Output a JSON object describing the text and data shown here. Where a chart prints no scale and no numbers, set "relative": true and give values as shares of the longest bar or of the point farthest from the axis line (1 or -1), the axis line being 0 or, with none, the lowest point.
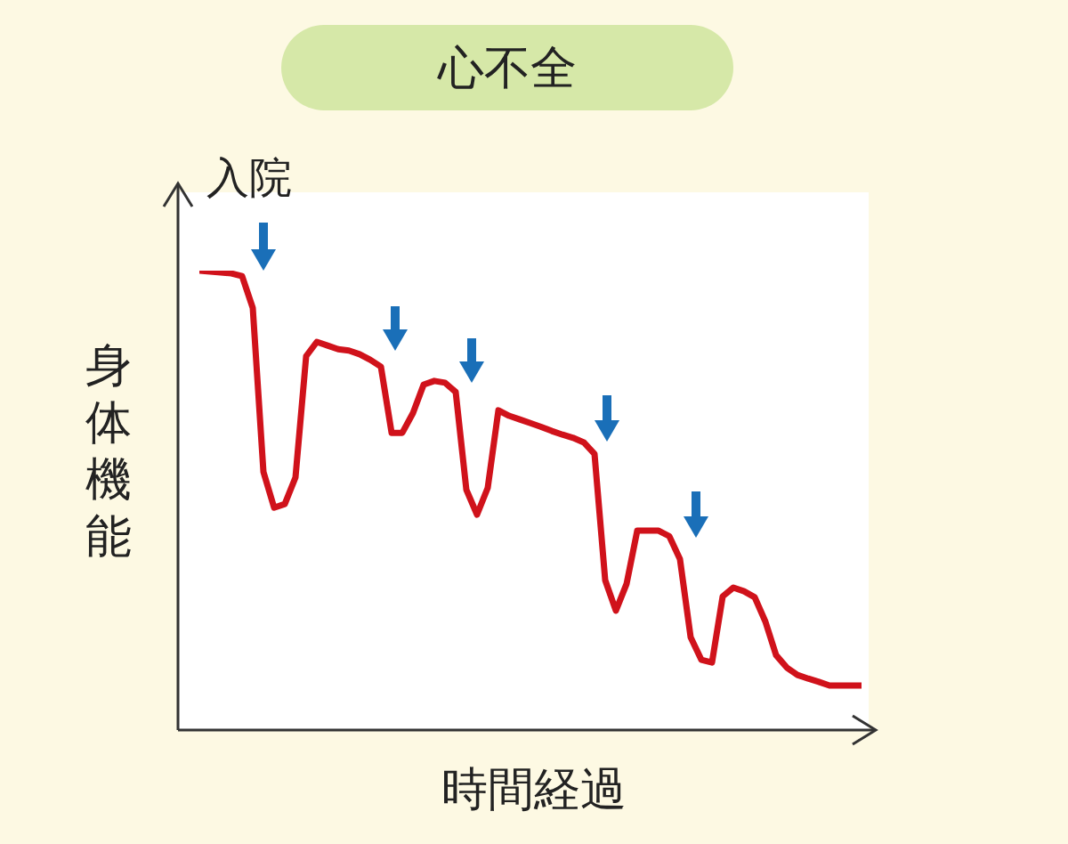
{
  "chart_data": {
    "type": "line",
    "title": "心不全",
    "xlabel": "時間経過",
    "ylabel": "身体機能",
    "annotations": [
      "入院"
    ],
    "relative": true,
    "marker": "none",
    "line_style": "solid",
    "categories": [
      null,
      null,
      null,
      null,
      null,
      null,
      null,
      null,
      null,
      null,
      null,
      null,
      null,
      null,
      null,
      null,
      null,
      null,
      null,
      null,
      null,
      null,
      null,
      null,
      null,
      null,
      null,
      null,
      null,
      null,
      null,
      null,
      null,
      null,
      null,
      null,
      null,
      null,
      null,
      null,
      null,
      null,
      null,
      null,
      null,
      null,
      null,
      null,
      null,
      null,
      null,
      null,
      null,
      null,
      null,
      null,
      null,
      null,
      null,
      null,
      null,
      null,
      null
    ],
    "series": [
      {
        "color": "#d0121b",
        "values": [
          1.0,
          0.998,
          0.996,
          0.994,
          0.988,
          0.919,
          0.562,
          0.484,
          0.492,
          0.55,
          0.814,
          0.845,
          0.837,
          0.829,
          0.826,
          0.818,
          0.806,
          0.791,
          0.647,
          0.647,
          0.69,
          0.752,
          0.76,
          0.756,
          0.736,
          0.523,
          0.469,
          0.527,
          0.696,
          0.684,
          0.676,
          0.668,
          0.66,
          0.651,
          0.643,
          0.636,
          0.626,
          0.601,
          0.326,
          0.26,
          0.318,
          0.434,
          0.434,
          0.434,
          0.422,
          0.372,
          0.202,
          0.153,
          0.147,
          0.291,
          0.31,
          0.302,
          0.289,
          0.236,
          0.163,
          0.136,
          0.12,
          0.112,
          0.105,
          0.097,
          0.097,
          0.097,
          0.097
        ]
      }
    ]
  }
}
